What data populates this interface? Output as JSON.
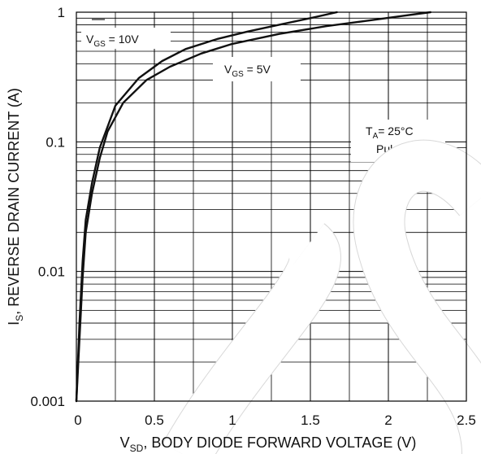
{
  "chart_data": {
    "type": "line",
    "title": "",
    "xlabel": {
      "main": "V",
      "sub": "SD",
      "rest": ", BODY DIODE FORWARD VOLTAGE (V)"
    },
    "ylabel": {
      "main": "I",
      "sub": "S",
      "rest": ", REVERSE DRAIN CURRENT (A)"
    },
    "xlim": [
      0,
      2.5
    ],
    "ylim": [
      0.001,
      1
    ],
    "yscale": "log",
    "grid": true,
    "x_ticks": [
      "0",
      "0.5",
      "1",
      "1.5",
      "2",
      "2.5"
    ],
    "x_tick_values": [
      0,
      0.5,
      1,
      1.5,
      2,
      2.5
    ],
    "y_ticks": [
      "0.001",
      "0.01",
      "0.1",
      "1"
    ],
    "y_tick_values": [
      0.001,
      0.01,
      0.1,
      1
    ],
    "series": [
      {
        "name": "VGS = 10V",
        "label": {
          "main": "V",
          "sub": "GS",
          "rest": " = 10V"
        },
        "x": [
          0.0,
          0.02,
          0.04,
          0.06,
          0.1,
          0.15,
          0.25,
          0.4,
          0.55,
          0.7,
          0.9,
          1.1,
          1.3,
          1.5,
          1.67
        ],
        "y": [
          0.001,
          0.004,
          0.012,
          0.025,
          0.048,
          0.09,
          0.19,
          0.31,
          0.42,
          0.52,
          0.62,
          0.71,
          0.8,
          0.9,
          1.0
        ]
      },
      {
        "name": "VGS = 5V",
        "label": {
          "main": "V",
          "sub": "GS",
          "rest": " = 5V"
        },
        "x": [
          0.0,
          0.02,
          0.04,
          0.06,
          0.1,
          0.15,
          0.2,
          0.3,
          0.45,
          0.6,
          0.8,
          1.0,
          1.3,
          1.6,
          1.9,
          2.1,
          2.27
        ],
        "y": [
          0.001,
          0.003,
          0.009,
          0.02,
          0.04,
          0.075,
          0.12,
          0.2,
          0.3,
          0.38,
          0.48,
          0.57,
          0.68,
          0.78,
          0.87,
          0.94,
          1.0
        ]
      }
    ],
    "annotations": [
      {
        "main": "T",
        "sub": "A",
        "rest": "= 25°C"
      },
      {
        "main": "Pulsed",
        "sub": "",
        "rest": ""
      }
    ]
  }
}
